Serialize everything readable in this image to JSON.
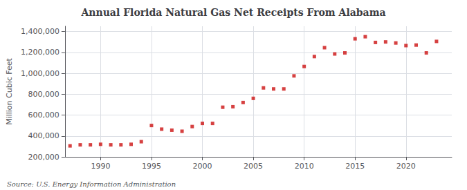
{
  "chart_data": {
    "type": "scatter",
    "title": "Annual Florida Natural Gas Net Receipts From Alabama",
    "ylabel": "Million Cubic Feet",
    "annotations": [
      "Source: U.S. Energy Information Administration"
    ],
    "x": [
      1987,
      1988,
      1989,
      1990,
      1991,
      1992,
      1993,
      1994,
      1995,
      1996,
      1997,
      1998,
      1999,
      2000,
      2001,
      2002,
      2003,
      2004,
      2005,
      2006,
      2007,
      2008,
      2009,
      2010,
      2011,
      2012,
      2013,
      2014,
      2015,
      2016,
      2017,
      2018,
      2019,
      2020,
      2021,
      2022,
      2023
    ],
    "values": [
      305000,
      315000,
      315000,
      320000,
      315000,
      315000,
      320000,
      345000,
      500000,
      465000,
      455000,
      445000,
      490000,
      520000,
      520000,
      675000,
      680000,
      720000,
      760000,
      860000,
      850000,
      850000,
      975000,
      1065000,
      1160000,
      1245000,
      1185000,
      1195000,
      1330000,
      1350000,
      1295000,
      1300000,
      1290000,
      1265000,
      1270000,
      1195000,
      1305000
    ],
    "color": "#cc1111",
    "marker": "square",
    "xlim": [
      1986.5,
      2024.5
    ],
    "xticks": [
      1990,
      1995,
      2000,
      2005,
      2010,
      2015,
      2020
    ],
    "ylim": [
      200000,
      1450000
    ],
    "yticks": [
      {
        "value": 200000,
        "label": "200,000"
      },
      {
        "value": 400000,
        "label": "400,000"
      },
      {
        "value": 600000,
        "label": "600,000"
      },
      {
        "value": 800000,
        "label": "800,000"
      },
      {
        "value": 1000000,
        "label": "1,000,000"
      },
      {
        "value": 1200000,
        "label": "1,200,000"
      },
      {
        "value": 1400000,
        "label": "1,400,000"
      }
    ],
    "grid": true
  }
}
